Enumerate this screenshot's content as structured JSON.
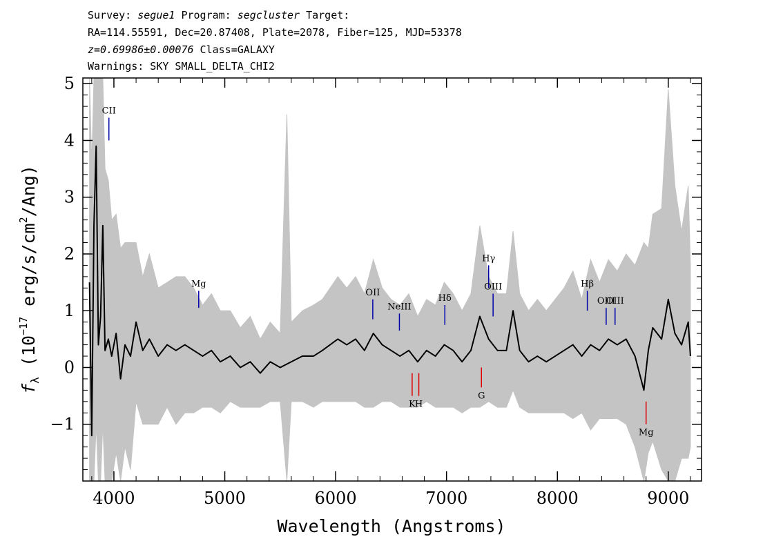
{
  "header": {
    "line1": {
      "survey_label": "Survey: ",
      "survey": "segue1",
      "program_label": " Program: ",
      "program": "segcluster",
      "target_label": " Target:"
    },
    "line2": "RA=114.55591, Dec=20.87408, Plate=2078, Fiber=125, MJD=53378",
    "line3": {
      "z": "z=0.69986±0.00076",
      "class": " Class=GALAXY"
    },
    "line4": "Warnings: SKY SMALL_DELTA_CHI2"
  },
  "chart_data": {
    "type": "line",
    "title": "",
    "xlabel": "Wavelength (Angstroms)",
    "ylabel_parts": {
      "f": "f",
      "sub": "λ",
      "pre": " (10",
      "exp": "−17",
      "mid": " erg/s/cm",
      "exp2": "2",
      "post": "/Ang)"
    },
    "xlim": [
      3720,
      9300
    ],
    "ylim": [
      -2.0,
      5.1
    ],
    "xticks": [
      4000,
      5000,
      6000,
      7000,
      8000,
      9000
    ],
    "xtick_labels": [
      "4000",
      "5000",
      "6000",
      "7000",
      "8000",
      "9000"
    ],
    "yticks": [
      -1,
      0,
      1,
      2,
      3,
      4,
      5
    ],
    "ytick_labels": [
      "−1",
      "0",
      "1",
      "2",
      "3",
      "4",
      "5"
    ],
    "colors": {
      "flux": "#000000",
      "error": "#c4c4c4",
      "emission": "#0000aa",
      "absorption": "#dd0000"
    },
    "series": [
      {
        "role": "flux",
        "x": [
          3780,
          3800,
          3820,
          3840,
          3860,
          3880,
          3900,
          3920,
          3950,
          3980,
          4020,
          4060,
          4100,
          4150,
          4200,
          4260,
          4320,
          4400,
          4480,
          4560,
          4640,
          4720,
          4800,
          4880,
          4960,
          5050,
          5140,
          5230,
          5320,
          5410,
          5500,
          5600,
          5700,
          5800,
          5880,
          5950,
          6020,
          6100,
          6180,
          6260,
          6340,
          6420,
          6500,
          6580,
          6660,
          6740,
          6820,
          6900,
          6980,
          7060,
          7140,
          7220,
          7300,
          7380,
          7460,
          7540,
          7600,
          7660,
          7740,
          7820,
          7900,
          7980,
          8060,
          8140,
          8220,
          8300,
          8380,
          8460,
          8540,
          8620,
          8700,
          8780,
          8820,
          8860,
          8940,
          9000,
          9060,
          9120,
          9180,
          9200
        ],
        "y": [
          1.5,
          -1.2,
          2.5,
          3.9,
          0.4,
          0.9,
          2.5,
          0.3,
          0.5,
          0.2,
          0.6,
          -0.2,
          0.4,
          0.2,
          0.8,
          0.3,
          0.5,
          0.2,
          0.4,
          0.3,
          0.4,
          0.3,
          0.2,
          0.3,
          0.1,
          0.2,
          0.0,
          0.1,
          -0.1,
          0.1,
          0.0,
          0.1,
          0.2,
          0.2,
          0.3,
          0.4,
          0.5,
          0.4,
          0.5,
          0.3,
          0.6,
          0.4,
          0.3,
          0.2,
          0.3,
          0.1,
          0.3,
          0.2,
          0.4,
          0.3,
          0.1,
          0.3,
          0.9,
          0.5,
          0.3,
          0.3,
          1.0,
          0.3,
          0.1,
          0.2,
          0.1,
          0.2,
          0.3,
          0.4,
          0.2,
          0.4,
          0.3,
          0.5,
          0.4,
          0.5,
          0.2,
          -0.4,
          0.3,
          0.7,
          0.5,
          1.2,
          0.6,
          0.4,
          0.8,
          0.2
        ]
      },
      {
        "role": "error",
        "x": [
          3780,
          3800,
          3820,
          3840,
          3860,
          3880,
          3900,
          3920,
          3950,
          3980,
          4020,
          4060,
          4100,
          4150,
          4200,
          4260,
          4320,
          4400,
          4480,
          4560,
          4640,
          4720,
          4800,
          4880,
          4960,
          5050,
          5140,
          5230,
          5320,
          5410,
          5500,
          5560,
          5600,
          5700,
          5800,
          5880,
          5950,
          6020,
          6100,
          6180,
          6260,
          6340,
          6420,
          6500,
          6580,
          6660,
          6740,
          6820,
          6900,
          6980,
          7060,
          7140,
          7220,
          7300,
          7380,
          7460,
          7540,
          7600,
          7660,
          7740,
          7820,
          7900,
          7980,
          8060,
          8140,
          8220,
          8300,
          8380,
          8460,
          8540,
          8620,
          8700,
          8780,
          8820,
          8860,
          8940,
          9000,
          9060,
          9120,
          9180,
          9200
        ],
        "y": [
          4.5,
          4.8,
          4.6,
          4.9,
          4.7,
          4.2,
          3.5,
          3.2,
          2.8,
          2.4,
          2.1,
          2.3,
          1.8,
          2.0,
          1.4,
          1.3,
          1.5,
          1.2,
          1.1,
          1.3,
          1.2,
          1.1,
          0.9,
          1.0,
          0.9,
          0.8,
          0.7,
          0.8,
          0.6,
          0.7,
          0.6,
          4.4,
          0.7,
          0.8,
          0.9,
          0.9,
          1.0,
          1.1,
          1.0,
          1.1,
          1.0,
          1.3,
          1.0,
          0.9,
          0.9,
          1.0,
          0.8,
          0.9,
          0.9,
          1.1,
          1.0,
          0.9,
          1.0,
          1.6,
          1.1,
          1.0,
          1.0,
          1.4,
          1.0,
          0.9,
          1.0,
          0.9,
          1.0,
          1.1,
          1.3,
          1.0,
          1.5,
          1.2,
          1.4,
          1.3,
          1.5,
          1.6,
          2.6,
          1.8,
          2.0,
          2.3,
          3.7,
          2.6,
          2.0,
          2.4,
          1.6
        ]
      }
    ],
    "line_marks": [
      {
        "label": "CII",
        "x": 3955,
        "y0": 4.0,
        "y1": 4.4,
        "kind": "emission"
      },
      {
        "label": "Mg",
        "x": 4765,
        "y0": 1.05,
        "y1": 1.35,
        "kind": "emission"
      },
      {
        "label": "OII",
        "x": 6335,
        "y0": 0.85,
        "y1": 1.2,
        "kind": "emission"
      },
      {
        "label": "NeIII",
        "x": 6575,
        "y0": 0.65,
        "y1": 0.95,
        "kind": "emission"
      },
      {
        "label": "Hδ",
        "x": 6985,
        "y0": 0.75,
        "y1": 1.1,
        "kind": "emission"
      },
      {
        "label": "Hγ",
        "x": 7380,
        "y0": 1.4,
        "y1": 1.8,
        "kind": "emission"
      },
      {
        "label": "OIII",
        "x": 7420,
        "y0": 0.9,
        "y1": 1.3,
        "kind": "emission"
      },
      {
        "label": "Hβ",
        "x": 8270,
        "y0": 1.0,
        "y1": 1.35,
        "kind": "emission"
      },
      {
        "label": "OIII",
        "x": 8440,
        "y0": 0.75,
        "y1": 1.05,
        "kind": "emission"
      },
      {
        "label": "OIII",
        "x": 8520,
        "y0": 0.75,
        "y1": 1.05,
        "kind": "emission"
      },
      {
        "label": "K",
        "x": 6690,
        "y0": -0.1,
        "y1": -0.5,
        "kind": "absorption"
      },
      {
        "label": "H",
        "x": 6750,
        "y0": -0.1,
        "y1": -0.5,
        "kind": "absorption"
      },
      {
        "label": "G",
        "x": 7315,
        "y0": 0.0,
        "y1": -0.35,
        "kind": "absorption"
      },
      {
        "label": "Mg",
        "x": 8800,
        "y0": -0.6,
        "y1": -1.0,
        "kind": "absorption"
      }
    ],
    "grid": false,
    "legend": "none"
  }
}
